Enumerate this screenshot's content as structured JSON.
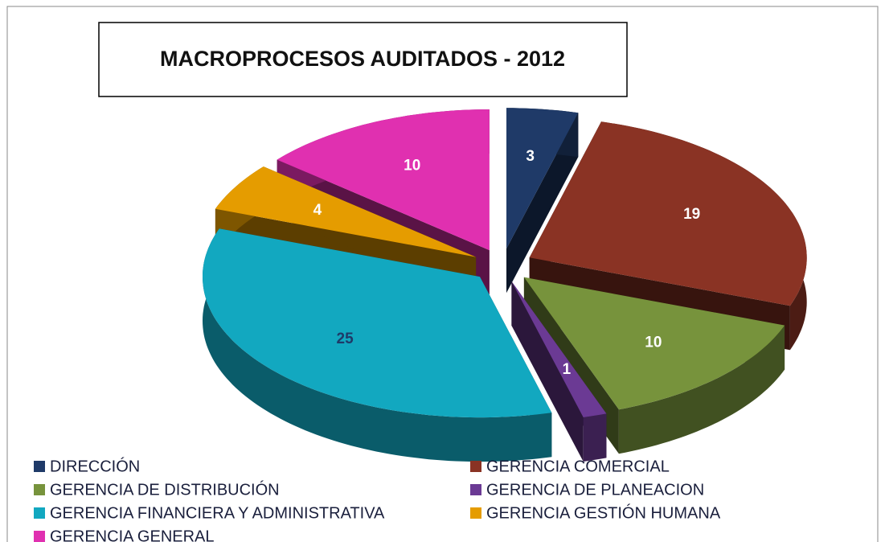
{
  "chart_data": {
    "type": "pie3d",
    "title": "MACROPROCESOS AUDITADOS - 2012",
    "categories": [
      "DIRECCIÓN",
      "GERENCIA COMERCIAL",
      "GERENCIA DE DISTRIBUCIÓN",
      "GERENCIA DE PLANEACION",
      "GERENCIA FINANCIERA Y ADMINISTRATIVA",
      "GERENCIA GESTIÓN HUMANA",
      "GERENCIA GENERAL"
    ],
    "values": [
      3,
      19,
      10,
      1,
      25,
      4,
      10
    ],
    "colors": [
      "#1f3a68",
      "#8a3324",
      "#77933c",
      "#6b3a94",
      "#12a8c0",
      "#e59c00",
      "#e030b0"
    ],
    "label_colors": [
      "#ffffff",
      "#ffffff",
      "#ffffff",
      "#ffffff",
      "#1f3a68",
      "#ffffff",
      "#ffffff"
    ],
    "legend": "bottom"
  }
}
